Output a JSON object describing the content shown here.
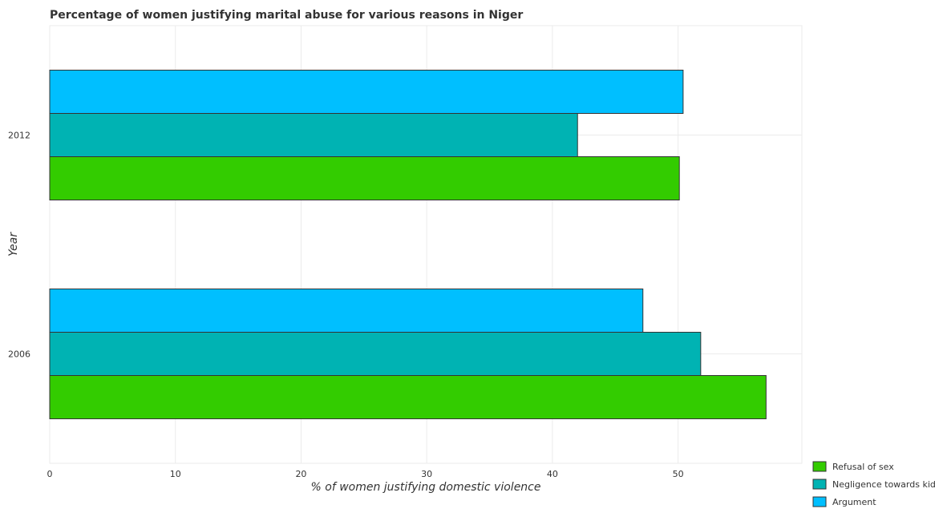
{
  "chart_data": {
    "type": "bar",
    "orientation": "horizontal",
    "title": "Percentage of women justifying marital abuse for various reasons in Niger",
    "xlabel": "% of women justifying domestic violence",
    "ylabel": "Year",
    "categories": [
      "2006",
      "2012"
    ],
    "series": [
      {
        "name": "Refusal of sex",
        "color": "#33cc00",
        "values": [
          57.0,
          50.1
        ]
      },
      {
        "name": "Negligence towards kids",
        "color": "#00b3b3",
        "values": [
          51.8,
          42.0
        ]
      },
      {
        "name": "Argument",
        "color": "#00bfff",
        "values": [
          47.2,
          50.4
        ]
      }
    ],
    "xlim": [
      0,
      59.85
    ],
    "xticks": [
      0,
      10,
      20,
      30,
      40,
      50
    ],
    "grid": true,
    "legend_position": "bottom-right"
  }
}
